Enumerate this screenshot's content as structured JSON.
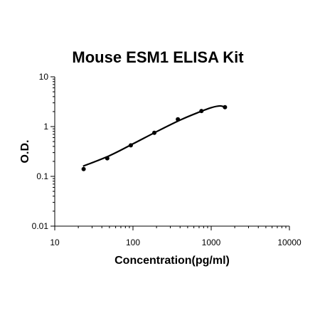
{
  "chart_data": {
    "type": "scatter",
    "title": "Mouse ESM1 ELISA Kit",
    "xlabel": "Concentration(pg/ml)",
    "ylabel": "O.D.",
    "xscale": "log",
    "yscale": "log",
    "xlim": [
      10,
      10000
    ],
    "ylim": [
      0.01,
      10
    ],
    "x_ticks": [
      10,
      100,
      1000,
      10000
    ],
    "x_tick_labels": [
      "10",
      "100",
      "1000",
      "10000"
    ],
    "y_ticks": [
      0.01,
      0.1,
      1,
      10
    ],
    "y_tick_labels": [
      "0.01",
      "0.1",
      "1",
      "10"
    ],
    "grid": false,
    "series": [
      {
        "x": [
          23.4,
          46.9,
          93.8,
          187.5,
          375,
          750,
          1500
        ],
        "y": [
          0.14,
          0.23,
          0.42,
          0.75,
          1.4,
          2.05,
          2.45
        ]
      }
    ],
    "fit_curve": {
      "x": [
        23,
        50,
        100,
        200,
        400,
        700,
        1000,
        1300,
        1500
      ],
      "y": [
        0.16,
        0.26,
        0.45,
        0.79,
        1.35,
        1.95,
        2.4,
        2.6,
        2.45
      ]
    },
    "colors": {
      "points": "#000000",
      "curve": "#000000",
      "axes": "#000000"
    }
  }
}
